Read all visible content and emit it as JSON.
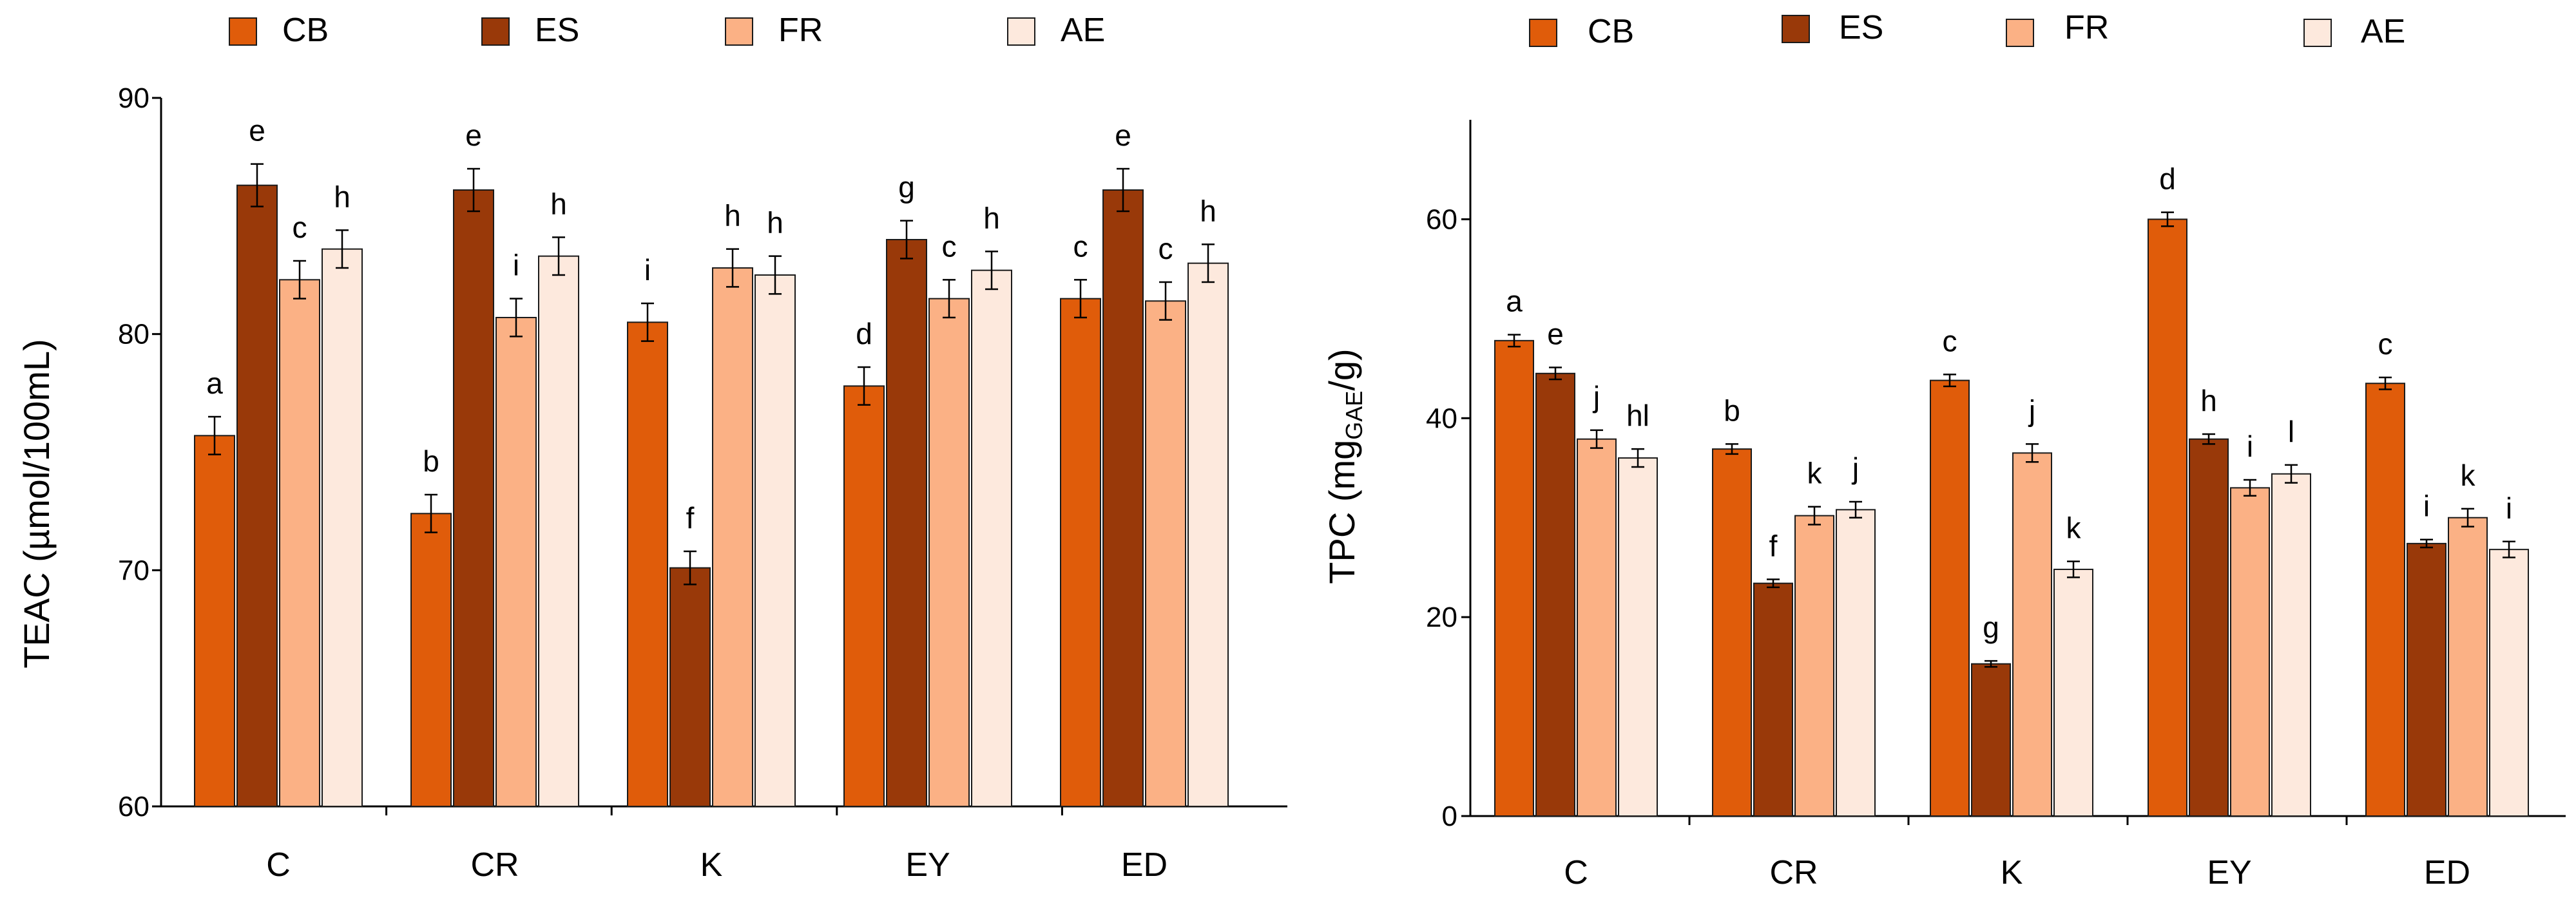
{
  "chart_data": [
    {
      "type": "bar",
      "legend": [
        "CB",
        "ES",
        "FR",
        "AE"
      ],
      "categories": [
        "C",
        "CR",
        "K",
        "EY",
        "ED"
      ],
      "ylabel": "TEAC (µmol/100mL)",
      "ylim": [
        60,
        90
      ],
      "yticks": [
        60,
        70,
        80,
        90
      ],
      "series": [
        {
          "name": "CB",
          "values": [
            75.7,
            72.4,
            80.5,
            77.8,
            81.5
          ],
          "errors": [
            0.8,
            0.8,
            0.8,
            0.8,
            0.8
          ],
          "labels": [
            "a",
            "b",
            "i",
            "d",
            "c"
          ]
        },
        {
          "name": "ES",
          "values": [
            86.3,
            86.1,
            70.1,
            84.0,
            86.1
          ],
          "errors": [
            0.9,
            0.9,
            0.7,
            0.8,
            0.9
          ],
          "labels": [
            "e",
            "e",
            "f",
            "g",
            "e"
          ]
        },
        {
          "name": "FR",
          "values": [
            82.3,
            80.7,
            82.8,
            81.5,
            81.4
          ],
          "errors": [
            0.8,
            0.8,
            0.8,
            0.8,
            0.8
          ],
          "labels": [
            "c",
            "i",
            "h",
            "c",
            "c"
          ]
        },
        {
          "name": "AE",
          "values": [
            83.6,
            83.3,
            82.5,
            82.7,
            83.0
          ],
          "errors": [
            0.8,
            0.8,
            0.8,
            0.8,
            0.8
          ],
          "labels": [
            "h",
            "h",
            "h",
            "h",
            "h"
          ]
        }
      ]
    },
    {
      "type": "bar",
      "legend": [
        "CB",
        "ES",
        "FR",
        "AE"
      ],
      "categories": [
        "C",
        "CR",
        "K",
        "EY",
        "ED"
      ],
      "ylabel": "TPC (mg",
      "ylabel_sub": "GAE",
      "ylabel_end": "/g)",
      "ylim": [
        0,
        70
      ],
      "yticks": [
        0,
        20,
        40,
        60
      ],
      "series": [
        {
          "name": "CB",
          "values": [
            47.8,
            36.9,
            43.8,
            60.0,
            43.5
          ],
          "errors": [
            0.6,
            0.5,
            0.6,
            0.7,
            0.6
          ],
          "labels": [
            "a",
            "b",
            "c",
            "d",
            "c"
          ]
        },
        {
          "name": "ES",
          "values": [
            44.5,
            23.4,
            15.3,
            37.9,
            27.4
          ],
          "errors": [
            0.6,
            0.4,
            0.3,
            0.5,
            0.4
          ],
          "labels": [
            "e",
            "f",
            "g",
            "h",
            "i"
          ]
        },
        {
          "name": "FR",
          "values": [
            37.9,
            30.2,
            36.5,
            33.0,
            30.0
          ],
          "errors": [
            0.9,
            0.9,
            0.9,
            0.8,
            0.9
          ],
          "labels": [
            "j",
            "k",
            "j",
            "i",
            "k"
          ]
        },
        {
          "name": "AE",
          "values": [
            36.0,
            30.8,
            24.8,
            34.4,
            26.8
          ],
          "errors": [
            0.9,
            0.8,
            0.8,
            0.9,
            0.8
          ],
          "labels": [
            "hl",
            "j",
            "k",
            "l",
            "i"
          ]
        }
      ]
    }
  ],
  "colors": {
    "CB": "#e05c0a",
    "ES": "#993909",
    "FR": "#fbb185",
    "AE": "#fde9dd",
    "stroke": "#1a1a1a"
  }
}
